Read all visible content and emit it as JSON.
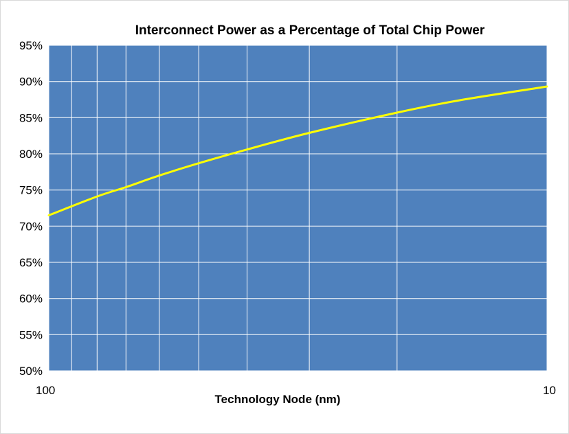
{
  "chart_data": {
    "type": "line",
    "title": "Interconnect Power as a Percentage of Total Chip Power",
    "xlabel": "Technology Node (nm)",
    "ylabel": "",
    "x_scale": "log",
    "x_reversed": true,
    "xlim": [
      100,
      10
    ],
    "x_tick_labels": [
      "100",
      "10"
    ],
    "ylim": [
      0.5,
      0.95
    ],
    "y_tick_labels": [
      "50%",
      "55%",
      "60%",
      "65%",
      "70%",
      "75%",
      "80%",
      "85%",
      "90%",
      "95%"
    ],
    "y_ticks": [
      0.5,
      0.55,
      0.6,
      0.65,
      0.7,
      0.75,
      0.8,
      0.85,
      0.9,
      0.95
    ],
    "grid": true,
    "legend": "none",
    "colors": {
      "plot_background": "#4f81bd",
      "gridline": "#ffffff",
      "line": "#ffff00"
    },
    "series": [
      {
        "x": [
          100,
          80,
          70,
          60,
          50,
          40,
          30,
          20,
          15,
          10
        ],
        "y": [
          0.715,
          0.741,
          0.754,
          0.77,
          0.787,
          0.806,
          0.829,
          0.857,
          0.874,
          0.893
        ]
      }
    ]
  }
}
